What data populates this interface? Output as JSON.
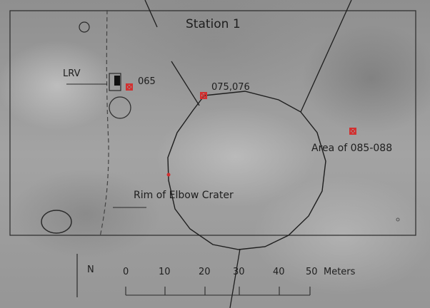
{
  "map": {
    "title": "Station 1",
    "labels": {
      "lrv": "LRV",
      "sample_065": "065",
      "sample_075": "075,076",
      "area": "Area of 085-088",
      "rim": "Rim of Elbow Crater"
    },
    "north_label": "N",
    "scale": {
      "ticks": [
        "0",
        "10",
        "20",
        "30",
        "40",
        "50"
      ],
      "units": "Meters"
    }
  },
  "colors": {
    "sample_marker": "#d23030",
    "ink": "#1e1e1e"
  }
}
